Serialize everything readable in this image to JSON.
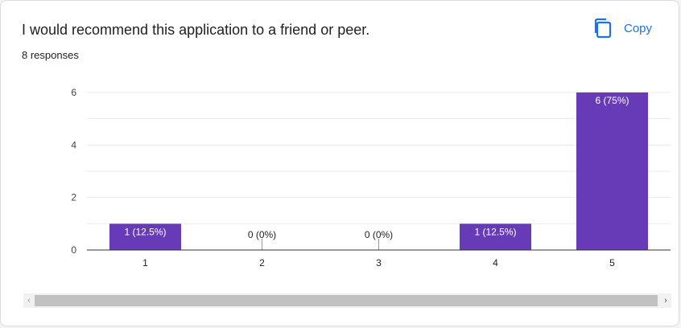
{
  "question": "I would recommend this application to a friend or peer.",
  "responses_label": "8 responses",
  "copy_label": "Copy",
  "icons": {
    "copy": "copy-icon",
    "scroll_left": "chevron-left-icon",
    "scroll_right": "chevron-right-icon"
  },
  "colors": {
    "bar": "#673ab7",
    "accent": "#1a73e8"
  },
  "scroll": {
    "left_arrow": "‹",
    "right_arrow": "›"
  },
  "chart_data": {
    "type": "bar",
    "categories": [
      "1",
      "2",
      "3",
      "4",
      "5"
    ],
    "values": [
      1,
      0,
      0,
      1,
      6
    ],
    "data_labels": [
      "1 (12.5%)",
      "0 (0%)",
      "0 (0%)",
      "1 (12.5%)",
      "6 (75%)"
    ],
    "ylim": [
      0,
      6
    ],
    "yticks": [
      0,
      2,
      4,
      6
    ],
    "grid": true
  }
}
